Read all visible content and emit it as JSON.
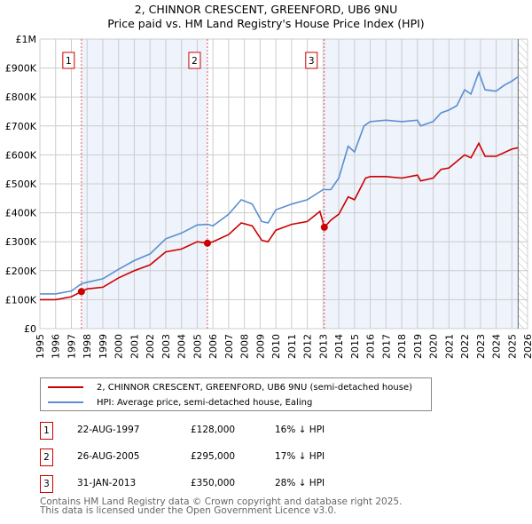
{
  "chart_data": {
    "type": "line",
    "title": "2, CHINNOR CRESCENT, GREENFORD, UB6 9NU",
    "subtitle": "Price paid vs. HM Land Registry's House Price Index (HPI)",
    "xlim": [
      1995,
      2026
    ],
    "ylim": [
      0,
      1000000
    ],
    "x_ticks": [
      "1995",
      "1996",
      "1997",
      "1998",
      "1999",
      "2000",
      "2001",
      "2002",
      "2003",
      "2004",
      "2005",
      "2006",
      "2007",
      "2008",
      "2009",
      "2010",
      "2011",
      "2012",
      "2013",
      "2014",
      "2015",
      "2016",
      "2017",
      "2018",
      "2019",
      "2020",
      "2021",
      "2022",
      "2023",
      "2024",
      "2025",
      "2026"
    ],
    "y_ticks": [
      {
        "v": 0,
        "label": "£0"
      },
      {
        "v": 100000,
        "label": "£100K"
      },
      {
        "v": 200000,
        "label": "£200K"
      },
      {
        "v": 300000,
        "label": "£300K"
      },
      {
        "v": 400000,
        "label": "£400K"
      },
      {
        "v": 500000,
        "label": "£500K"
      },
      {
        "v": 600000,
        "label": "£600K"
      },
      {
        "v": 700000,
        "label": "£700K"
      },
      {
        "v": 800000,
        "label": "£800K"
      },
      {
        "v": 900000,
        "label": "£900K"
      },
      {
        "v": 1000000,
        "label": "£1M"
      }
    ],
    "grid": true,
    "data_end": 2025.4,
    "series": [
      {
        "name": "2, CHINNOR CRESCENT, GREENFORD, UB6 9NU (semi-detached house)",
        "color": "#cc0000",
        "x": [
          1995,
          1996,
          1997,
          1997.64,
          1998,
          1999,
          2000,
          2001,
          2002,
          2003,
          2004,
          2005,
          2005.65,
          2006,
          2007,
          2007.8,
          2008.5,
          2009.1,
          2009.5,
          2010,
          2011,
          2012,
          2012.8,
          2013.08,
          2013.5,
          2014,
          2014.6,
          2015,
          2015.7,
          2016,
          2017,
          2018,
          2019,
          2019.2,
          2020,
          2020.5,
          2021,
          2022,
          2022.4,
          2022.9,
          2023.3,
          2024,
          2025,
          2025.4
        ],
        "y": [
          100000,
          100000,
          110000,
          128000,
          137000,
          143000,
          175000,
          200000,
          220000,
          265000,
          275000,
          300000,
          295000,
          300000,
          325000,
          365000,
          355000,
          305000,
          300000,
          340000,
          360000,
          370000,
          405000,
          350000,
          375000,
          395000,
          455000,
          445000,
          520000,
          525000,
          525000,
          520000,
          530000,
          510000,
          520000,
          550000,
          555000,
          600000,
          590000,
          640000,
          595000,
          595000,
          620000,
          625000
        ]
      },
      {
        "name": "HPI: Average price, semi-detached house, Ealing",
        "color": "#5b8fd0",
        "x": [
          1995,
          1996,
          1997,
          1997.64,
          1998,
          1999,
          2000,
          2001,
          2002,
          2003,
          2004,
          2005,
          2005.65,
          2006,
          2007,
          2007.8,
          2008.5,
          2009.1,
          2009.5,
          2010,
          2011,
          2012,
          2013,
          2013.5,
          2014,
          2014.6,
          2015,
          2015.6,
          2016,
          2017,
          2018,
          2019,
          2019.2,
          2020,
          2020.5,
          2021,
          2021.5,
          2022,
          2022.4,
          2022.9,
          2023.3,
          2024,
          2024.5,
          2025,
          2025.4
        ],
        "y": [
          120000,
          120000,
          130000,
          155000,
          160000,
          172000,
          205000,
          235000,
          258000,
          310000,
          330000,
          358000,
          360000,
          355000,
          395000,
          445000,
          430000,
          370000,
          365000,
          410000,
          430000,
          445000,
          480000,
          480000,
          520000,
          630000,
          610000,
          700000,
          715000,
          720000,
          715000,
          720000,
          700000,
          715000,
          745000,
          755000,
          770000,
          825000,
          810000,
          885000,
          825000,
          820000,
          840000,
          855000,
          870000
        ]
      }
    ],
    "sales": [
      {
        "id": "1",
        "x": 1997.64,
        "date": "22-AUG-1997",
        "price": 128000,
        "price_label": "£128,000",
        "delta": "16% ↓ HPI"
      },
      {
        "id": "2",
        "x": 2005.65,
        "date": "26-AUG-2005",
        "price": 295000,
        "price_label": "£295,000",
        "delta": "17% ↓ HPI"
      },
      {
        "id": "3",
        "x": 2013.08,
        "date": "31-JAN-2013",
        "price": 350000,
        "price_label": "£350,000",
        "delta": "28% ↓ HPI"
      }
    ],
    "legend_position": "below"
  },
  "footer": {
    "line1": "Contains HM Land Registry data © Crown copyright and database right 2025.",
    "line2": "This data is licensed under the Open Government Licence v3.0."
  }
}
